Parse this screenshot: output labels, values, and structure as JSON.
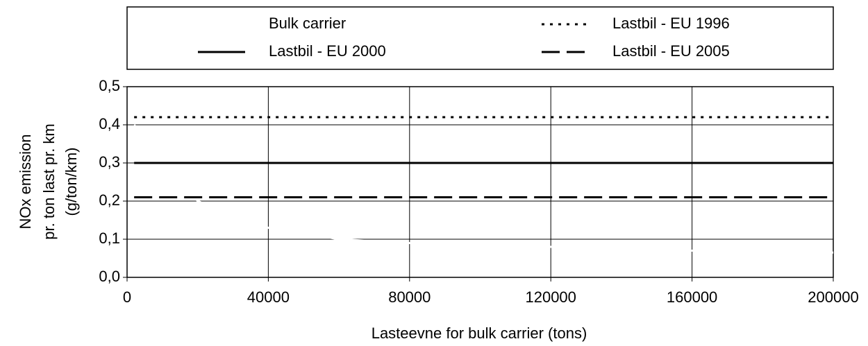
{
  "chart_data": {
    "type": "line",
    "ylabel": [
      "NOx emission",
      "pr. ton last pr. km",
      "(g/ton/km)"
    ],
    "xlabel": "Lasteevne for bulk carrier (tons)",
    "series": [
      {
        "name": "Bulk carrier",
        "color": "#ffffff",
        "style": "solid",
        "x": [
          2000,
          20000,
          40000,
          60000,
          80000,
          120000,
          160000,
          200000
        ],
        "values": [
          0.4,
          0.2,
          0.13,
          0.1,
          0.09,
          0.08,
          0.07,
          0.065
        ]
      },
      {
        "name": "Lastbil - EU 1996",
        "color": "#000000",
        "style": "dotted",
        "x": [
          2000,
          200000
        ],
        "values": [
          0.42,
          0.42
        ]
      },
      {
        "name": "Lastbil - EU 2000",
        "color": "#000000",
        "style": "solid",
        "x": [
          2000,
          200000
        ],
        "values": [
          0.3,
          0.3
        ]
      },
      {
        "name": "Lastbil - EU 2005",
        "color": "#000000",
        "style": "dashed",
        "x": [
          2000,
          200000
        ],
        "values": [
          0.21,
          0.21
        ]
      }
    ],
    "xlim": [
      0,
      200000
    ],
    "xticks": [
      0,
      40000,
      80000,
      120000,
      160000,
      200000
    ],
    "ylim": [
      0,
      0.5
    ],
    "yticks": [
      {
        "value": 0,
        "label": "0,0"
      },
      {
        "value": 0.1,
        "label": "0,1"
      },
      {
        "value": 0.2,
        "label": "0,2"
      },
      {
        "value": 0.3,
        "label": "0,3"
      },
      {
        "value": 0.4,
        "label": "0,4"
      },
      {
        "value": 0.5,
        "label": "0,5"
      }
    ],
    "grid": true
  }
}
